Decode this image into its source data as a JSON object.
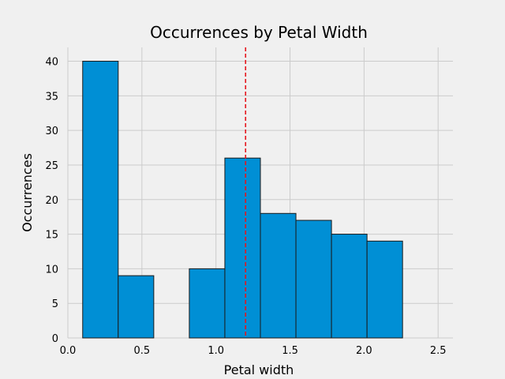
{
  "chart_data": {
    "type": "bar",
    "title": "Occurrences by Petal Width",
    "xlabel": "Petal width",
    "ylabel": "Occurrences",
    "xlim": [
      0.0,
      2.6
    ],
    "ylim": [
      0,
      42
    ],
    "x_ticks": [
      0.0,
      0.5,
      1.0,
      1.5,
      2.0,
      2.5
    ],
    "x_tick_labels": [
      "0.0",
      "0.5",
      "1.0",
      "1.5",
      "2.0",
      "2.5"
    ],
    "y_ticks": [
      0,
      5,
      10,
      15,
      20,
      25,
      30,
      35,
      40
    ],
    "y_tick_labels": [
      "0",
      "5",
      "10",
      "15",
      "20",
      "25",
      "30",
      "35",
      "40"
    ],
    "bins": [
      {
        "start": 0.1,
        "end": 0.34,
        "value": 40
      },
      {
        "start": 0.34,
        "end": 0.58,
        "value": 9
      },
      {
        "start": 0.58,
        "end": 0.82,
        "value": 0
      },
      {
        "start": 0.82,
        "end": 1.06,
        "value": 10
      },
      {
        "start": 1.06,
        "end": 1.3,
        "value": 26
      },
      {
        "start": 1.3,
        "end": 1.54,
        "value": 18
      },
      {
        "start": 1.54,
        "end": 1.78,
        "value": 17
      },
      {
        "start": 1.78,
        "end": 2.02,
        "value": 15
      },
      {
        "start": 2.02,
        "end": 2.26,
        "value": 14
      }
    ],
    "bin_edges_fraction_note": "",
    "reference_line": {
      "x": 1.2,
      "style": "dashed",
      "color": "#e5161d"
    },
    "bar_color": "#008fd5",
    "bar_edge_color": "#1a1a1a",
    "grid": true,
    "background": "#f0f0f0"
  }
}
